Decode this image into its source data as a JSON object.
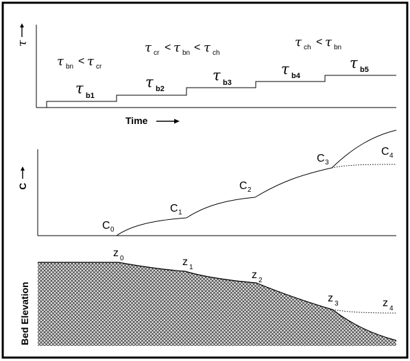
{
  "panel_top": {
    "y_axis_label": "τ",
    "x_axis_label": "Time",
    "conditions": [
      {
        "lhs": "τ",
        "lhs_sub": "bn",
        "op1": "<",
        "mid": "τ",
        "mid_sub": "cr",
        "op2": "",
        "rhs": "",
        "rhs_sub": ""
      },
      {
        "lhs": "τ",
        "lhs_sub": "cr",
        "op1": "<",
        "mid": "τ",
        "mid_sub": "bn",
        "op2": "<",
        "rhs": "τ",
        "rhs_sub": "ch"
      },
      {
        "lhs": "τ",
        "lhs_sub": "ch",
        "op1": "<",
        "mid": "τ",
        "mid_sub": "bn",
        "op2": "",
        "rhs": "",
        "rhs_sub": ""
      }
    ],
    "steps": [
      {
        "symbol": "τ",
        "sub": "b1",
        "level": 1
      },
      {
        "symbol": "τ",
        "sub": "b2",
        "level": 2
      },
      {
        "symbol": "τ",
        "sub": "b3",
        "level": 3
      },
      {
        "symbol": "τ",
        "sub": "b4",
        "level": 4
      },
      {
        "symbol": "τ",
        "sub": "b5",
        "level": 5
      }
    ]
  },
  "panel_mid": {
    "y_axis_label": "C",
    "points": [
      {
        "letter": "C",
        "sub": "0"
      },
      {
        "letter": "C",
        "sub": "1"
      },
      {
        "letter": "C",
        "sub": "2"
      },
      {
        "letter": "C",
        "sub": "3"
      },
      {
        "letter": "C",
        "sub": "4"
      }
    ]
  },
  "panel_bottom": {
    "y_axis_label": "Bed Elevation",
    "points": [
      {
        "letter": "z",
        "sub": "0"
      },
      {
        "letter": "z",
        "sub": "1"
      },
      {
        "letter": "z",
        "sub": "2"
      },
      {
        "letter": "z",
        "sub": "3"
      },
      {
        "letter": "z",
        "sub": "4"
      }
    ]
  },
  "colors": {
    "ink": "#000000",
    "background": "#ffffff",
    "hatch": "#000000"
  }
}
